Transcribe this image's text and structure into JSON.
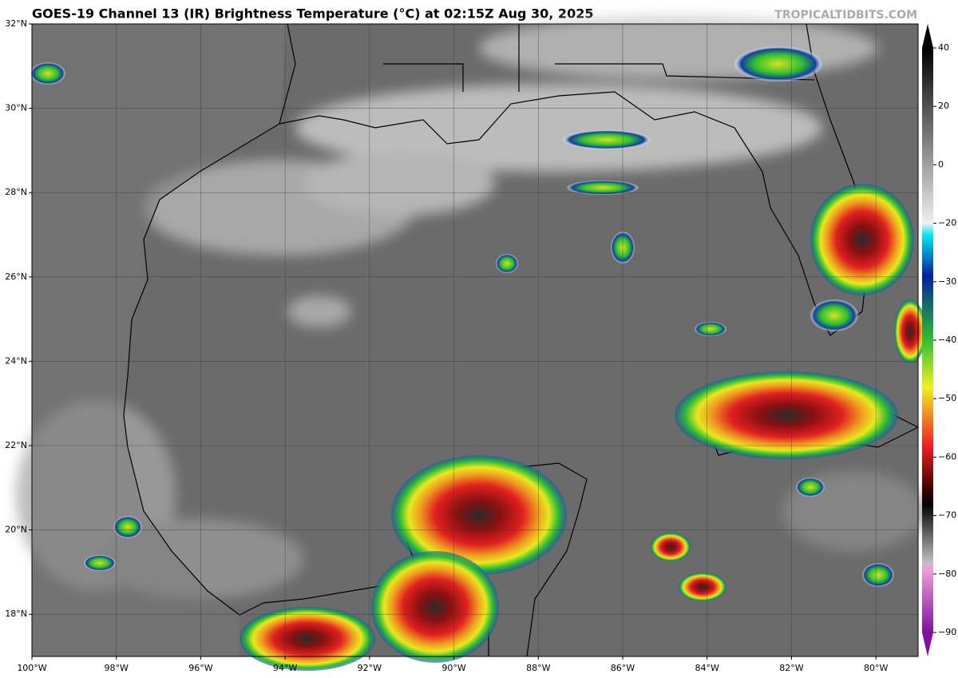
{
  "header": {
    "title": "GOES-19 Channel 13 (IR) Brightness Temperature (°C) at 02:15Z Aug 30, 2025",
    "credit": "TROPICALTIDBITS.COM"
  },
  "map": {
    "lonlim": [
      -100,
      -79
    ],
    "latlim": [
      17,
      32
    ],
    "lon_ticks": [
      {
        "value": -100,
        "label": "100°W"
      },
      {
        "value": -98,
        "label": "98°W"
      },
      {
        "value": -96,
        "label": "96°W"
      },
      {
        "value": -94,
        "label": "94°W"
      },
      {
        "value": -92,
        "label": "92°W"
      },
      {
        "value": -90,
        "label": "90°W"
      },
      {
        "value": -88,
        "label": "88°W"
      },
      {
        "value": -86,
        "label": "86°W"
      },
      {
        "value": -84,
        "label": "84°W"
      },
      {
        "value": -82,
        "label": "82°W"
      },
      {
        "value": -80,
        "label": "80°W"
      }
    ],
    "lat_ticks": [
      {
        "value": 32,
        "label": "32°N"
      },
      {
        "value": 30,
        "label": "30°N"
      },
      {
        "value": 28,
        "label": "28°N"
      },
      {
        "value": 26,
        "label": "26°N"
      },
      {
        "value": 24,
        "label": "24°N"
      },
      {
        "value": 22,
        "label": "22°N"
      },
      {
        "value": 20,
        "label": "20°N"
      },
      {
        "value": 18,
        "label": "18°N"
      }
    ]
  },
  "colorbar": {
    "ticks": [
      40,
      20,
      0,
      {
        "value": -20,
        "label": "−20"
      },
      {
        "value": -30,
        "label": "−30"
      },
      {
        "value": -40,
        "label": "−40"
      },
      {
        "value": -50,
        "label": "−50"
      },
      {
        "value": -60,
        "label": "−60"
      },
      {
        "value": -70,
        "label": "−70"
      },
      {
        "value": -80,
        "label": "−80"
      },
      {
        "value": -90,
        "label": "−90"
      }
    ]
  }
}
